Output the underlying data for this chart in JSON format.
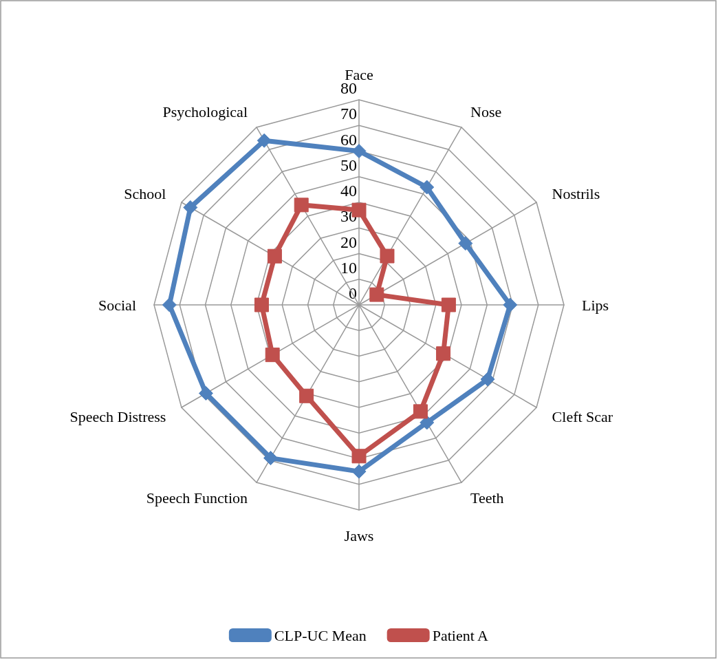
{
  "chart_data": {
    "type": "radar",
    "categories": [
      "Face",
      "Nose",
      "Nostrils",
      "Lips",
      "Cleft Scar",
      "Teeth",
      "Jaws",
      "Speech Function",
      "Speech Distress",
      "Social",
      "School",
      "Psychological"
    ],
    "series": [
      {
        "name": "CLP-UC Mean",
        "color": "#4f81bd",
        "marker": "diamond",
        "values": [
          60,
          53,
          48,
          59,
          58,
          53,
          65,
          69,
          69,
          74,
          76,
          74
        ]
      },
      {
        "name": "Patient A",
        "color": "#c0504d",
        "marker": "square",
        "values": [
          37,
          22,
          8,
          35,
          38,
          48,
          59,
          41,
          39,
          38,
          38,
          45
        ]
      }
    ],
    "ylim": [
      0,
      80
    ],
    "yticks": [
      0,
      10,
      20,
      30,
      40,
      50,
      60,
      70,
      80
    ],
    "grid": true,
    "legend": "bottom"
  }
}
